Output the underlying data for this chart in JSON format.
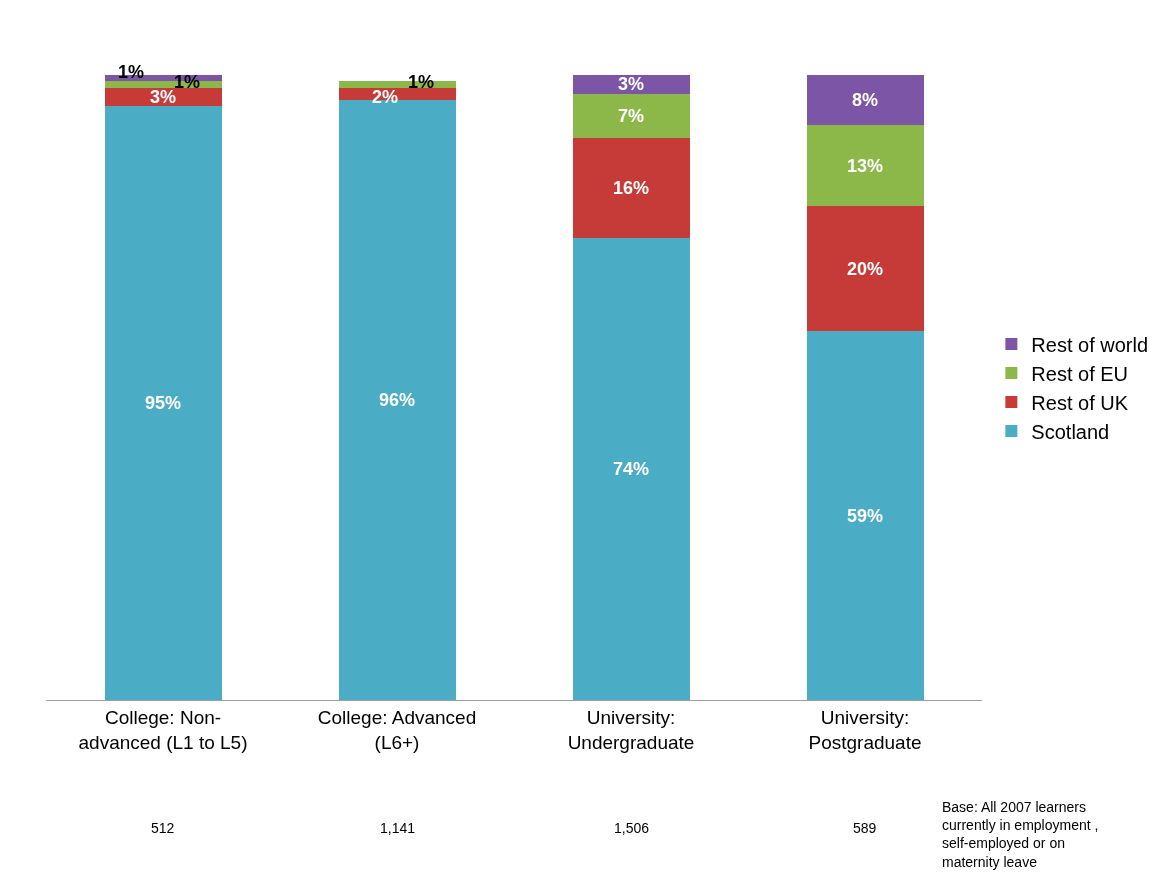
{
  "chart_data": {
    "type": "bar",
    "stacked": true,
    "legend": "right",
    "categories": [
      "College: Non-advanced (L1 to L5)",
      "College: Advanced (L6+)",
      "University: Undergraduate",
      "University: Postgraduate"
    ],
    "series": [
      {
        "name": "Scotland",
        "color": "#4bacc6",
        "values": [
          95,
          96,
          74,
          59
        ],
        "value_labels": [
          "95%",
          "96%",
          "74%",
          "59%"
        ]
      },
      {
        "name": "Rest of UK",
        "color": "#c63b37",
        "values": [
          3,
          2,
          16,
          20
        ],
        "value_labels": [
          "3%",
          "2%",
          "16%",
          "20%"
        ]
      },
      {
        "name": "Rest of EU",
        "color": "#8cb84a",
        "values": [
          1,
          1,
          7,
          13
        ],
        "value_labels": [
          "1%",
          "1%",
          "7%",
          "13%"
        ]
      },
      {
        "name": "Rest of world",
        "color": "#7d55a6",
        "values": [
          1,
          null,
          3,
          8
        ],
        "value_labels": [
          "1%",
          null,
          "3%",
          "8%"
        ]
      }
    ],
    "annotations": [
      "512",
      "1,141",
      "1,506",
      "589",
      "Base: All 2007 learners currently in employment , self-employed or on maternity leave"
    ]
  }
}
